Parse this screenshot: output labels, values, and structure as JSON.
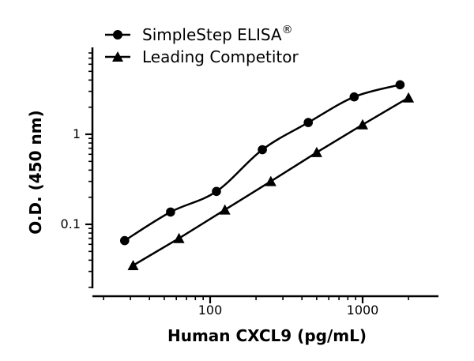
{
  "chart_data": {
    "type": "scatter",
    "title": "",
    "xlabel": "Human CXCL9 (pg/mL)",
    "ylabel": "O.D. (450 nm)",
    "x_scale": "log",
    "y_scale": "log",
    "xlim": [
      20,
      2500
    ],
    "ylim": [
      0.016,
      8
    ],
    "x_ticks": [
      {
        "value": 100,
        "label": "100"
      },
      {
        "value": 1000,
        "label": "1000"
      }
    ],
    "y_ticks": [
      {
        "value": 0.1,
        "label": "0.1"
      },
      {
        "value": 1,
        "label": "1"
      }
    ],
    "grid": false,
    "legend_position": "top-left",
    "series": [
      {
        "name": "SimpleStep ELISA",
        "name_superscript": "®",
        "marker": "circle",
        "color": "#000000",
        "x": [
          27.5,
          55,
          110,
          220,
          440,
          880,
          1760
        ],
        "y": [
          0.066,
          0.137,
          0.232,
          0.675,
          1.35,
          2.6,
          3.55
        ]
      },
      {
        "name": "Leading Competitor",
        "marker": "triangle",
        "color": "#000000",
        "x": [
          31.25,
          62.5,
          125,
          250,
          500,
          1000,
          2000
        ],
        "y": [
          0.035,
          0.07,
          0.145,
          0.3,
          0.63,
          1.28,
          2.55
        ]
      }
    ]
  }
}
